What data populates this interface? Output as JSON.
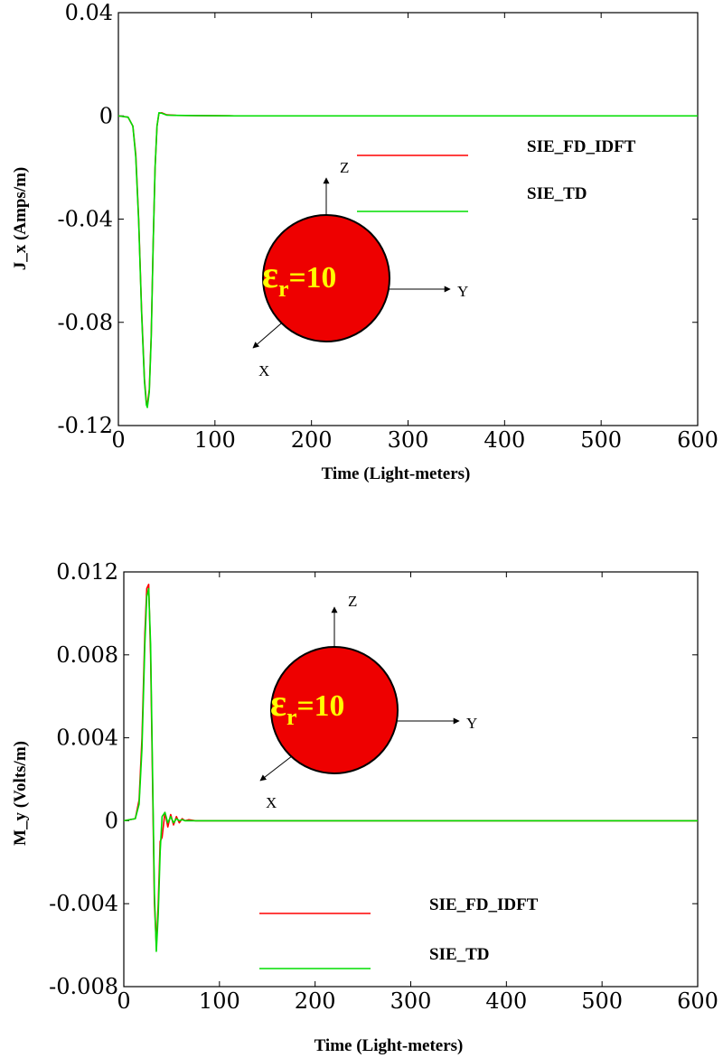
{
  "chart_data": [
    {
      "type": "line",
      "xlabel": "Time (Light-meters)",
      "ylabel": "J_x (Amps/m)",
      "xlim": [
        0,
        600
      ],
      "ylim": [
        -0.12,
        0.04
      ],
      "xticks": [
        0,
        100,
        200,
        300,
        400,
        500,
        600
      ],
      "yticks": [
        0.04,
        0,
        -0.04,
        -0.08,
        -0.12
      ],
      "xtick_labels": [
        "0",
        "100",
        "200",
        "300",
        "400",
        "500",
        "600"
      ],
      "ytick_labels": [
        "0.04",
        "0",
        "-0.04",
        "-0.08",
        "-0.12"
      ],
      "legend": [
        "SIE_FD_IDFT",
        "SIE_TD"
      ],
      "inset": {
        "epsilon_symbol": "ε",
        "subscript": "r",
        "value": "=10",
        "axes": [
          "Z",
          "Y",
          "X"
        ]
      },
      "series": [
        {
          "name": "SIE_FD_IDFT",
          "color": "#ff0000",
          "x": [
            0,
            10,
            15,
            18,
            21,
            24,
            27,
            29,
            30,
            32,
            34,
            36,
            38,
            40,
            42,
            45,
            50,
            60,
            80,
            120,
            200,
            600
          ],
          "y": [
            0,
            -0.0005,
            -0.004,
            -0.015,
            -0.04,
            -0.075,
            -0.102,
            -0.111,
            -0.112,
            -0.106,
            -0.085,
            -0.05,
            -0.02,
            -0.004,
            0.001,
            0.0012,
            0.0004,
            0.0002,
            0.0001,
            0,
            0,
            0
          ]
        },
        {
          "name": "SIE_TD",
          "color": "#00dd00",
          "x": [
            0,
            10,
            15,
            18,
            21,
            24,
            27,
            29,
            30,
            32,
            34,
            36,
            38,
            40,
            42,
            45,
            50,
            60,
            80,
            120,
            200,
            600
          ],
          "y": [
            0,
            -0.0005,
            -0.004,
            -0.016,
            -0.041,
            -0.076,
            -0.103,
            -0.112,
            -0.113,
            -0.107,
            -0.086,
            -0.05,
            -0.02,
            -0.004,
            0.0012,
            0.001,
            0.0003,
            0.0002,
            0.0001,
            0,
            0,
            0
          ]
        }
      ]
    },
    {
      "type": "line",
      "xlabel": "Time (Light-meters)",
      "ylabel": "M_y (Volts/m)",
      "xlim": [
        0,
        600
      ],
      "ylim": [
        -0.008,
        0.012
      ],
      "xticks": [
        0,
        100,
        200,
        300,
        400,
        500,
        600
      ],
      "yticks": [
        0.012,
        0.008,
        0.004,
        0,
        -0.004,
        -0.008
      ],
      "xtick_labels": [
        "0",
        "100",
        "200",
        "300",
        "400",
        "500",
        "600"
      ],
      "ytick_labels": [
        "0.012",
        "0.008",
        "0.004",
        "0",
        "-0.004",
        "-0.008"
      ],
      "legend": [
        "SIE_FD_IDFT",
        "SIE_TD"
      ],
      "inset": {
        "epsilon_symbol": "ε",
        "subscript": "r",
        "value": "=10",
        "axes": [
          "Z",
          "Y",
          "X"
        ]
      },
      "series": [
        {
          "name": "SIE_FD_IDFT",
          "color": "#ff0000",
          "x": [
            0,
            12,
            16,
            19,
            22,
            24,
            26,
            28,
            30,
            32,
            34,
            36,
            38,
            40,
            43,
            46,
            49,
            52,
            55,
            58,
            61,
            64,
            68,
            75,
            85,
            100,
            120,
            600
          ],
          "y": [
            0,
            0.0001,
            0.001,
            0.004,
            0.009,
            0.0112,
            0.0114,
            0.008,
            0.002,
            -0.004,
            -0.006,
            -0.004,
            -0.001,
            -0.0008,
            0.0004,
            -0.0003,
            0.0003,
            -0.0002,
            0.0002,
            -0.0001,
            0.0001,
            0,
            5e-05,
            0,
            0,
            0,
            0,
            0
          ]
        },
        {
          "name": "SIE_TD",
          "color": "#00dd00",
          "x": [
            0,
            12,
            16,
            19,
            22,
            24,
            26,
            28,
            30,
            32,
            34,
            36,
            38,
            40,
            43,
            46,
            49,
            52,
            55,
            58,
            61,
            64,
            68,
            75,
            85,
            100,
            120,
            600
          ],
          "y": [
            0,
            0.0001,
            0.0008,
            0.0035,
            0.0085,
            0.0108,
            0.0112,
            0.0085,
            0.0025,
            -0.0035,
            -0.0063,
            -0.0045,
            -0.0015,
            0.0002,
            0.0004,
            -0.0001,
            0.0002,
            -0.0001,
            0.0001,
            0,
            5e-05,
            0,
            0,
            0,
            0,
            0,
            0,
            0
          ]
        }
      ]
    }
  ]
}
